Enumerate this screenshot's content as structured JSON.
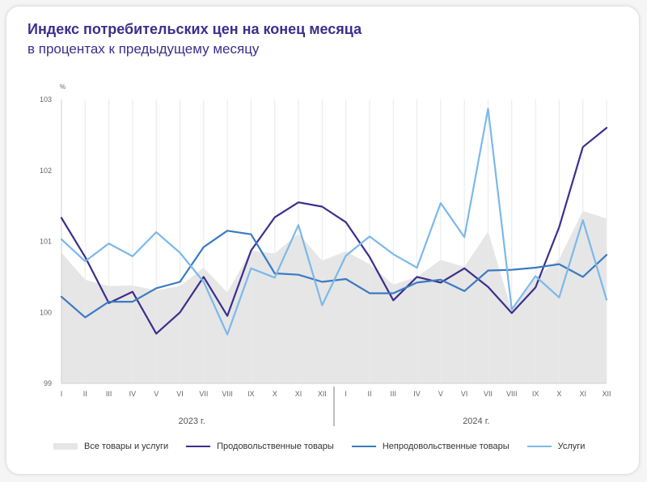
{
  "title": "Индекс потребительских цен на конец месяца",
  "subtitle": "в процентах к предыдущему месяцу",
  "chart_data": {
    "type": "line",
    "yunit": "%",
    "ylim": [
      99,
      103
    ],
    "yticks": [
      "99",
      "100",
      "101",
      "102",
      "103"
    ],
    "categories": [
      "I",
      "II",
      "III",
      "IV",
      "V",
      "VI",
      "VII",
      "VIII",
      "IX",
      "X",
      "XI",
      "XII",
      "I",
      "II",
      "III",
      "IV",
      "V",
      "VI",
      "VII",
      "VIII",
      "IX",
      "X",
      "XI",
      "XII"
    ],
    "year_groups": [
      {
        "label": "2023 г.",
        "from": 0,
        "to": 11
      },
      {
        "label": "2024 г.",
        "from": 12,
        "to": 23
      }
    ],
    "grid": "vertical",
    "legend_position": "bottom",
    "series": [
      {
        "name": "Все товары и услуги",
        "style": "area",
        "color": "#e6e6e6",
        "values": [
          100.84,
          100.46,
          100.37,
          100.38,
          100.31,
          100.37,
          100.63,
          100.28,
          100.87,
          100.83,
          101.11,
          100.73,
          100.86,
          100.68,
          100.39,
          100.5,
          100.74,
          100.64,
          101.14,
          100.02,
          100.48,
          100.75,
          101.43,
          101.32
        ]
      },
      {
        "name": "Продовольственные товары",
        "style": "line",
        "color": "#3b2f8c",
        "values": [
          101.33,
          100.78,
          100.13,
          100.29,
          99.7,
          100.0,
          100.5,
          99.95,
          100.87,
          101.34,
          101.55,
          101.49,
          101.27,
          100.78,
          100.17,
          100.5,
          100.42,
          100.62,
          100.36,
          99.99,
          100.35,
          101.2,
          102.33,
          102.6
        ]
      },
      {
        "name": "Непродовольственные товары",
        "style": "line",
        "color": "#3a7bc2",
        "values": [
          100.22,
          99.93,
          100.15,
          100.15,
          100.34,
          100.43,
          100.92,
          101.15,
          101.1,
          100.55,
          100.53,
          100.43,
          100.47,
          100.27,
          100.27,
          100.42,
          100.46,
          100.3,
          100.59,
          100.6,
          100.63,
          100.68,
          100.5,
          100.81
        ]
      },
      {
        "name": "Услуги",
        "style": "line",
        "color": "#7cb8ea",
        "values": [
          101.03,
          100.72,
          100.97,
          100.79,
          101.13,
          100.84,
          100.43,
          99.69,
          100.62,
          100.49,
          101.23,
          100.1,
          100.8,
          101.07,
          100.82,
          100.63,
          101.54,
          101.06,
          102.87,
          100.04,
          100.51,
          100.21,
          101.3,
          100.18
        ]
      }
    ]
  }
}
